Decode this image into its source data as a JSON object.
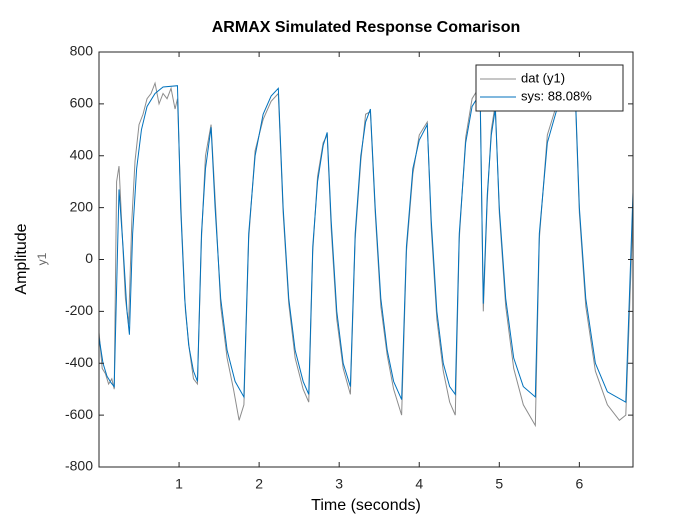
{
  "chart_data": {
    "type": "line",
    "title": "ARMAX Simulated Response Comarison",
    "xlabel": "Time (seconds)",
    "ylabel": "Amplitude",
    "ylabel2": "y1",
    "xlim": [
      0,
      6.67
    ],
    "ylim": [
      -800,
      800
    ],
    "xticks": [
      1,
      2,
      3,
      4,
      5,
      6
    ],
    "yticks": [
      -800,
      -600,
      -400,
      -200,
      0,
      200,
      400,
      600,
      800
    ],
    "grid": false,
    "legend": "top-right",
    "series": [
      {
        "name": "dat (y1)",
        "color": "#8c8c8c",
        "x": [
          0,
          0.04,
          0.08,
          0.12,
          0.16,
          0.19,
          0.22,
          0.25,
          0.29,
          0.33,
          0.37,
          0.41,
          0.45,
          0.5,
          0.55,
          0.6,
          0.65,
          0.7,
          0.75,
          0.8,
          0.85,
          0.9,
          0.95,
          0.98,
          1.03,
          1.08,
          1.13,
          1.18,
          1.23,
          1.28,
          1.33,
          1.4,
          1.46,
          1.52,
          1.6,
          1.68,
          1.75,
          1.81,
          1.87,
          1.95,
          2.05,
          2.15,
          2.24,
          2.3,
          2.37,
          2.45,
          2.55,
          2.62,
          2.67,
          2.73,
          2.8,
          2.85,
          2.9,
          2.97,
          3.05,
          3.14,
          3.2,
          3.27,
          3.33,
          3.39,
          3.45,
          3.52,
          3.6,
          3.68,
          3.78,
          3.84,
          3.92,
          4.0,
          4.1,
          4.15,
          4.22,
          4.3,
          4.38,
          4.45,
          4.5,
          4.58,
          4.66,
          4.76,
          4.8,
          4.85,
          4.9,
          4.95,
          5.0,
          5.08,
          5.18,
          5.3,
          5.45,
          5.5,
          5.6,
          5.72,
          5.85,
          5.95,
          6.0,
          6.08,
          6.2,
          6.35,
          6.5,
          6.58,
          6.67
        ],
        "values": [
          -280,
          -420,
          -440,
          -480,
          -460,
          -500,
          300,
          360,
          100,
          -150,
          -250,
          150,
          380,
          520,
          560,
          620,
          640,
          680,
          600,
          640,
          620,
          660,
          580,
          620,
          150,
          -200,
          -350,
          -460,
          -480,
          80,
          400,
          520,
          180,
          -180,
          -380,
          -500,
          -620,
          -560,
          80,
          420,
          540,
          610,
          640,
          180,
          -170,
          -380,
          -500,
          -550,
          30,
          320,
          450,
          480,
          120,
          -230,
          -420,
          -520,
          80,
          380,
          560,
          570,
          180,
          -180,
          -370,
          -500,
          -600,
          30,
          330,
          480,
          530,
          120,
          -230,
          -430,
          -550,
          -600,
          80,
          470,
          620,
          670,
          -200,
          230,
          500,
          600,
          180,
          -180,
          -420,
          -560,
          -640,
          80,
          480,
          600,
          650,
          620,
          180,
          -180,
          -430,
          -560,
          -620,
          -600,
          180
        ]
      },
      {
        "name": "sys: 88.08%",
        "color": "#0072bd",
        "x": [
          0,
          0.05,
          0.1,
          0.15,
          0.19,
          0.25,
          0.3,
          0.35,
          0.38,
          0.42,
          0.47,
          0.53,
          0.6,
          0.7,
          0.8,
          0.98,
          1.02,
          1.07,
          1.12,
          1.18,
          1.23,
          1.28,
          1.33,
          1.4,
          1.45,
          1.52,
          1.6,
          1.7,
          1.81,
          1.87,
          1.95,
          2.05,
          2.15,
          2.24,
          2.3,
          2.37,
          2.45,
          2.55,
          2.62,
          2.67,
          2.73,
          2.8,
          2.85,
          2.9,
          2.97,
          3.05,
          3.14,
          3.2,
          3.27,
          3.33,
          3.39,
          3.45,
          3.52,
          3.6,
          3.68,
          3.78,
          3.84,
          3.92,
          4.0,
          4.1,
          4.15,
          4.22,
          4.3,
          4.38,
          4.45,
          4.5,
          4.58,
          4.66,
          4.76,
          4.8,
          4.85,
          4.9,
          4.95,
          5.0,
          5.08,
          5.18,
          5.3,
          5.45,
          5.5,
          5.6,
          5.72,
          5.85,
          5.95,
          6.0,
          6.08,
          6.2,
          6.35,
          6.58,
          6.67
        ],
        "values": [
          -300,
          -400,
          -450,
          -475,
          -490,
          270,
          50,
          -200,
          -290,
          100,
          350,
          500,
          590,
          640,
          665,
          670,
          200,
          -150,
          -330,
          -430,
          -470,
          100,
          350,
          510,
          200,
          -150,
          -350,
          -470,
          -530,
          100,
          400,
          560,
          630,
          660,
          200,
          -150,
          -350,
          -470,
          -520,
          50,
          300,
          440,
          490,
          150,
          -200,
          -400,
          -490,
          100,
          400,
          530,
          580,
          200,
          -150,
          -350,
          -470,
          -540,
          50,
          350,
          460,
          520,
          150,
          -200,
          -400,
          -490,
          -520,
          100,
          450,
          590,
          640,
          -170,
          250,
          480,
          580,
          200,
          -150,
          -380,
          -490,
          -530,
          100,
          450,
          580,
          630,
          640,
          200,
          -150,
          -400,
          -510,
          -550,
          260
        ]
      }
    ]
  }
}
